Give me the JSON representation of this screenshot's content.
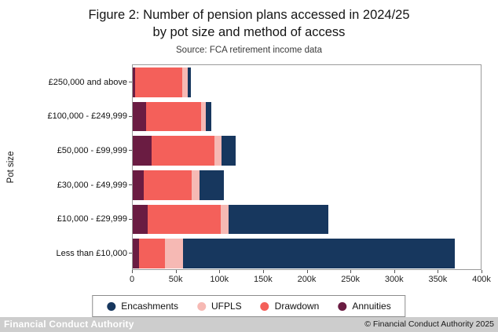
{
  "chart_data": {
    "type": "bar",
    "orientation": "horizontal",
    "stacked": true,
    "title": "Figure 2: Number of pension plans accessed in 2024/25",
    "subtitle": "by pot size and method of access",
    "source": "Source: FCA retirement income data",
    "ylabel": "Pot size",
    "categories": [
      "£250,000 and above",
      "£100,000 - £249,999",
      "£50,000 - £99,999",
      "£30,000 - £49,999",
      "£10,000 - £29,999",
      "Less than £10,000"
    ],
    "series": [
      {
        "name": "Annuities",
        "color": "#6a1c42",
        "values": [
          3000,
          15000,
          22000,
          13000,
          17000,
          7000
        ]
      },
      {
        "name": "Drawdown",
        "color": "#f4605a",
        "values": [
          54000,
          64000,
          72000,
          55000,
          84000,
          30000
        ]
      },
      {
        "name": "UFPLS",
        "color": "#f6b9b4",
        "values": [
          6000,
          5000,
          8000,
          9000,
          9000,
          21000
        ]
      },
      {
        "name": "Encashments",
        "color": "#17375e",
        "values": [
          4000,
          6000,
          16000,
          28000,
          115000,
          312000
        ]
      }
    ],
    "legend_order": [
      "Encashments",
      "UFPLS",
      "Drawdown",
      "Annuities"
    ],
    "x_ticks": [
      "0",
      "50k",
      "100k",
      "150k",
      "200k",
      "250k",
      "300k",
      "350k",
      "400k"
    ],
    "xlim": [
      0,
      400000
    ],
    "grid": false,
    "legend_position": "bottom"
  },
  "footer": {
    "watermark": "Financial Conduct Authority",
    "copyright": "© Financial Conduct Authority 2025"
  }
}
